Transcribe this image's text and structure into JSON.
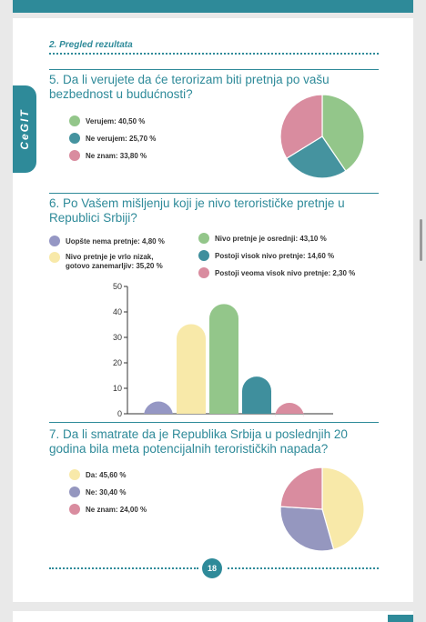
{
  "header": {
    "section_title": "2. Pregled rezultata",
    "tab_label": "CeGIT"
  },
  "q5": {
    "question": "5. Da li verujete da će terorizam biti pretnja po vašu bezbednost u budućnosti?",
    "legend": [
      "Verujem: 40,50 %",
      "Ne verujem: 25,70 %",
      "Ne znam: 33,80 %"
    ]
  },
  "q6": {
    "question": "6. Po Vašem mišljenju koji je nivo terorističke pretnje u Republici Srbiji?",
    "legend": [
      "Uopšte nema pretnje: 4,80 %",
      "Nivo pretnje je vrlo nizak,",
      "gotovo zanemarljiv: 35,20 %",
      "Nivo pretnje je osrednji: 43,10 %",
      "Postoji visok nivo pretnje: 14,60 %",
      "Postoji veoma visok nivo pretnje: 2,30 %"
    ]
  },
  "q7": {
    "question": "7. Da li smatrate da je Republika Srbija u poslednjih 20 godina bila meta potencijalnih terorističkih napada?",
    "legend": [
      "Da: 45,60 %",
      "Ne: 30,40 %",
      "Ne znam: 24,00 %"
    ]
  },
  "page_number": "18",
  "colors": {
    "teal": "#2e8a99",
    "green": "#93c68a",
    "blue": "#45939f",
    "pink": "#d98c9f",
    "lavender": "#9799c4",
    "yellow": "#f7e7a6",
    "gray_blue": "#9597bf"
  },
  "chart_data": [
    {
      "type": "pie",
      "categories": [
        "Verujem",
        "Ne verujem",
        "Ne znam"
      ],
      "values": [
        40.5,
        25.7,
        33.8
      ],
      "colors": [
        "#93c68a",
        "#45939f",
        "#d98c9f"
      ]
    },
    {
      "type": "bar",
      "categories": [
        "Uopšte nema pretnje",
        "Nivo pretnje je vrlo nizak, gotovo zanemarljiv",
        "Nivo pretnje je osrednji",
        "Postoji visok nivo pretnje",
        "Postoji veoma visok nivo pretnje"
      ],
      "values": [
        4.8,
        35.2,
        43.1,
        14.6,
        2.3
      ],
      "colors": [
        "#9597c4",
        "#f8e9a9",
        "#93c68a",
        "#3f8f9d",
        "#d98c9f"
      ],
      "yticks": [
        "0",
        "10",
        "20",
        "30",
        "40",
        "50"
      ],
      "ylim": [
        0,
        50
      ]
    },
    {
      "type": "pie",
      "categories": [
        "Da",
        "Ne",
        "Ne znam"
      ],
      "values": [
        45.6,
        30.4,
        24.0
      ],
      "colors": [
        "#f8e9a9",
        "#9597bf",
        "#d98c9f"
      ]
    }
  ]
}
